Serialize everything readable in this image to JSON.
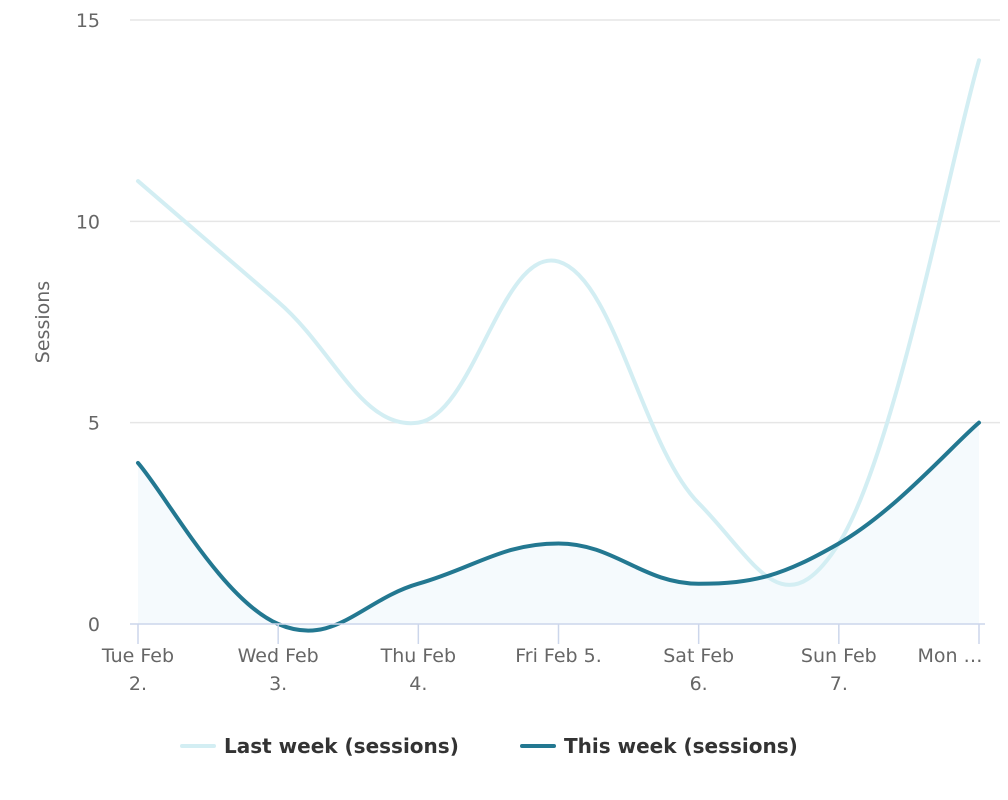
{
  "chart_data": {
    "type": "line",
    "title": "",
    "xlabel": "",
    "ylabel": "Sessions",
    "ylim": [
      0,
      15
    ],
    "yticks": [
      "0",
      "5",
      "10",
      "15"
    ],
    "grid": true,
    "legend_position": "bottom",
    "categories": [
      [
        "Tue Feb",
        "2."
      ],
      [
        "Wed Feb",
        "3."
      ],
      [
        "Thu Feb",
        "4."
      ],
      [
        "Fri Feb 5."
      ],
      [
        "Sat Feb",
        "6."
      ],
      [
        "Sun Feb",
        "7."
      ],
      [
        "Mon …"
      ]
    ],
    "series": [
      {
        "name": "Last week (sessions)",
        "color": "#d3eef3",
        "values": [
          11,
          8,
          5,
          9,
          3,
          2,
          14
        ],
        "area": false
      },
      {
        "name": "This week (sessions)",
        "color": "#237891",
        "area_fill": "#f5fafd",
        "values": [
          4,
          0,
          1,
          2,
          1,
          2,
          5
        ],
        "area": true
      }
    ]
  }
}
